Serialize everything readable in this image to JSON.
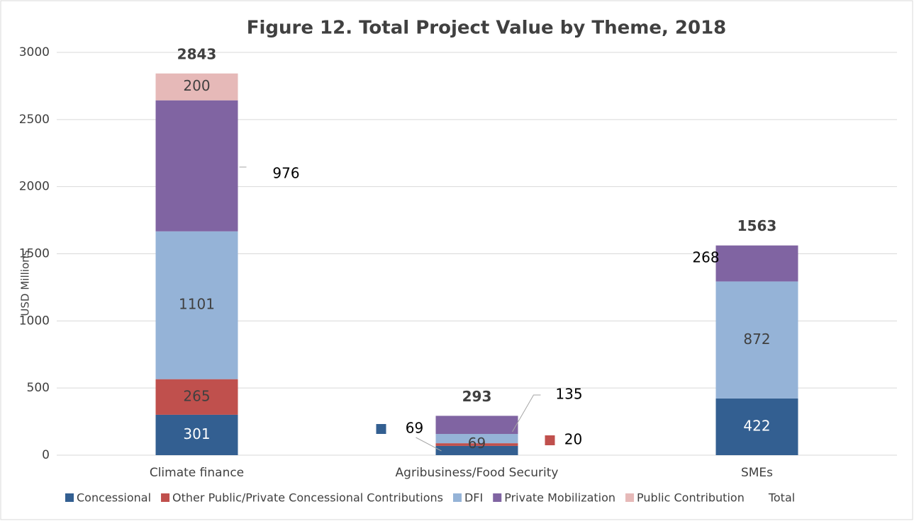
{
  "chart_data": {
    "type": "stacked-bar",
    "title": "Figure 12. Total Project Value by Theme, 2018",
    "ylabel": "USD Millions",
    "categories": [
      "Climate finance",
      "Agribusiness/Food Security",
      "SMEs"
    ],
    "series": [
      {
        "name": "Concessional",
        "color": "#335f91",
        "values": [
          301,
          69,
          422
        ]
      },
      {
        "name": "Other Public/Private Concessional Contributions",
        "color": "#c0504d",
        "values": [
          265,
          20,
          null
        ]
      },
      {
        "name": "DFI",
        "color": "#95b3d7",
        "values": [
          1101,
          69,
          872
        ]
      },
      {
        "name": "Private Mobilization",
        "color": "#8064a2",
        "values": [
          976,
          135,
          268
        ]
      },
      {
        "name": "Public Contribution",
        "color": "#e6b9b8",
        "values": [
          200,
          null,
          null
        ]
      },
      {
        "name": "Total",
        "values": [
          2843,
          293,
          1563
        ]
      }
    ],
    "ylim": [
      0,
      3000
    ],
    "yticks": [
      0,
      500,
      1000,
      1500,
      2000,
      2500,
      3000
    ],
    "grid": true
  }
}
